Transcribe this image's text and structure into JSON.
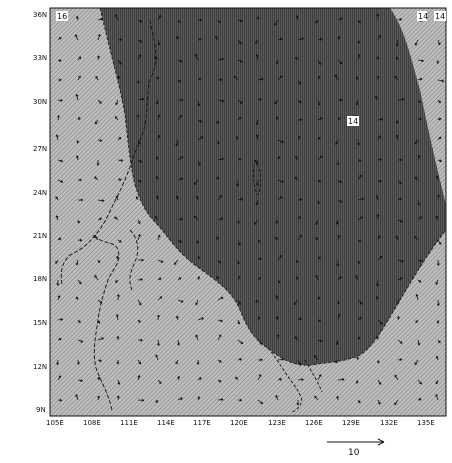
{
  "map": {
    "lat_labels": [
      "9N",
      "12N",
      "15N",
      "18N",
      "21N",
      "24N",
      "27N",
      "30N",
      "33N",
      "36N"
    ],
    "lon_labels": [
      "105E",
      "108E",
      "111E",
      "114E",
      "117E",
      "120E",
      "123E",
      "126E",
      "129E",
      "132E",
      "135E"
    ],
    "contour_labels": [
      "16",
      "14",
      "14",
      "14"
    ],
    "reference_vector_label": "10",
    "colors": {
      "light_fill": "#b9b9b9",
      "dark_fill": "#4a4a4a",
      "hatch_light": "#8a8a8a",
      "hatch_dark": "#1c1c1c",
      "coastline": "#111111"
    }
  }
}
